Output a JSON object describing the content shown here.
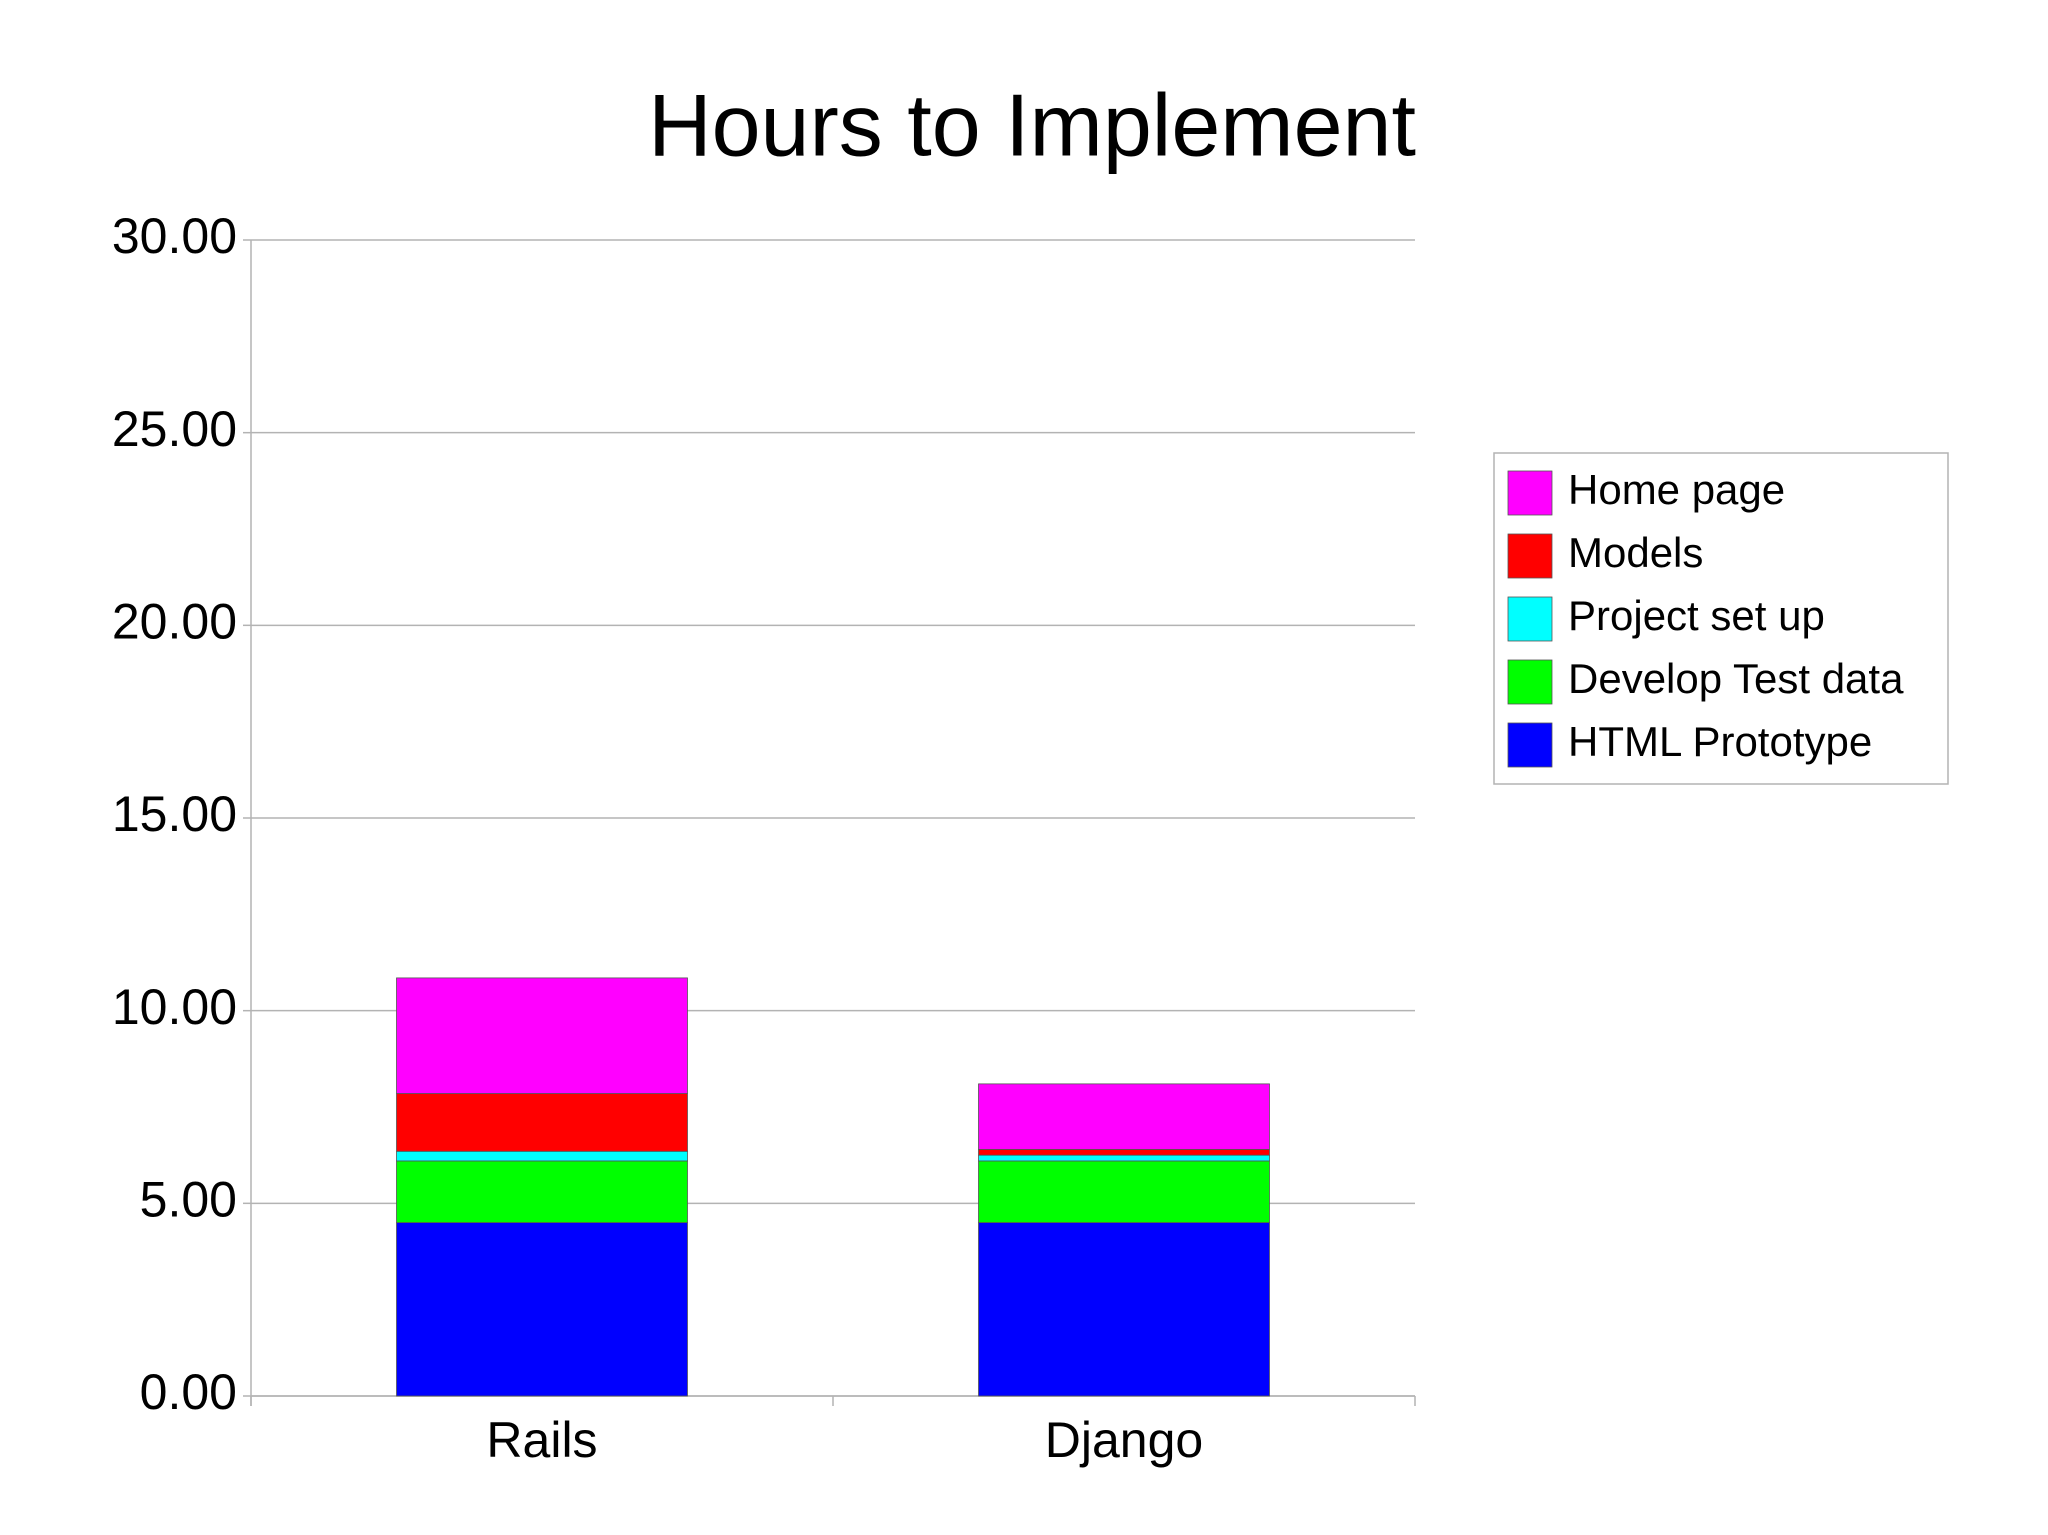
{
  "chart_data": {
    "type": "stacked_bar",
    "title": "Hours to Implement",
    "categories": [
      "Rails",
      "Django"
    ],
    "series": [
      {
        "name": "HTML Prototype",
        "color": "#0000ff",
        "values": [
          4.5,
          4.5
        ]
      },
      {
        "name": "Develop Test data",
        "color": "#00ff00",
        "values": [
          1.6,
          1.6
        ]
      },
      {
        "name": "Project set up",
        "color": "#00ffff",
        "values": [
          0.25,
          0.15
        ]
      },
      {
        "name": "Models",
        "color": "#ff0000",
        "values": [
          1.5,
          0.15
        ]
      },
      {
        "name": "Home page",
        "color": "#ff00ff",
        "values": [
          3.0,
          1.7
        ]
      }
    ],
    "ylim": [
      0,
      30
    ],
    "yticks": [
      {
        "value": 0,
        "label": "0.00"
      },
      {
        "value": 5,
        "label": "5.00"
      },
      {
        "value": 10,
        "label": "10.00"
      },
      {
        "value": 15,
        "label": "15.00"
      },
      {
        "value": 20,
        "label": "20.00"
      },
      {
        "value": 25,
        "label": "25.00"
      },
      {
        "value": 30,
        "label": "30.00"
      }
    ],
    "grid": true,
    "legend": "right"
  }
}
